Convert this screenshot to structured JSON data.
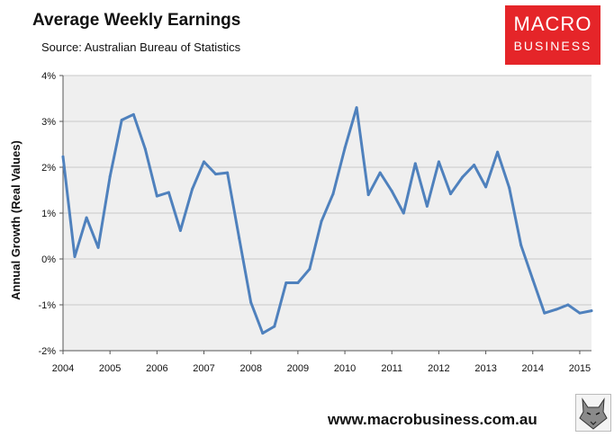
{
  "header": {
    "title": "Average Weekly Earnings",
    "source": "Source: Australian Bureau of Statistics"
  },
  "logo": {
    "line1": "MACRO",
    "line2": "BUSINESS"
  },
  "footer": {
    "url": "www.macrobusiness.com.au"
  },
  "colors": {
    "line": "#4f81bd",
    "plot_bg": "#efefef",
    "logo_bg": "#e52529"
  },
  "icons": {
    "footer_mark": "wolf-icon"
  },
  "chart_data": {
    "type": "line",
    "title": "Average Weekly Earnings",
    "xlabel": "",
    "ylabel": "Annual Growth (Real Values)",
    "xlim": [
      2004,
      2015.25
    ],
    "ylim": [
      -2,
      4
    ],
    "x_ticks": [
      2004,
      2005,
      2006,
      2007,
      2008,
      2009,
      2010,
      2011,
      2012,
      2013,
      2014,
      2015
    ],
    "x_tick_labels": [
      "2004",
      "2005",
      "2006",
      "2007",
      "2008",
      "2009",
      "2010",
      "2011",
      "2012",
      "2013",
      "2014",
      "2015"
    ],
    "y_ticks": [
      -2,
      -1,
      0,
      1,
      2,
      3,
      4
    ],
    "y_tick_labels": [
      "-2%",
      "-1%",
      "0%",
      "1%",
      "2%",
      "3%",
      "4%"
    ],
    "grid": "horizontal",
    "legend": "none",
    "series": [
      {
        "values": [
          [
            2004.0,
            2.23
          ],
          [
            2004.25,
            0.05
          ],
          [
            2004.5,
            0.9
          ],
          [
            2004.75,
            0.25
          ],
          [
            2005.0,
            1.8
          ],
          [
            2005.25,
            3.03
          ],
          [
            2005.5,
            3.15
          ],
          [
            2005.75,
            2.4
          ],
          [
            2006.0,
            1.37
          ],
          [
            2006.25,
            1.45
          ],
          [
            2006.5,
            0.62
          ],
          [
            2006.75,
            1.52
          ],
          [
            2007.0,
            2.12
          ],
          [
            2007.25,
            1.85
          ],
          [
            2007.5,
            1.88
          ],
          [
            2007.75,
            0.45
          ],
          [
            2008.0,
            -0.95
          ],
          [
            2008.25,
            -1.62
          ],
          [
            2008.5,
            -1.47
          ],
          [
            2008.75,
            -0.52
          ],
          [
            2009.0,
            -0.52
          ],
          [
            2009.25,
            -0.22
          ],
          [
            2009.5,
            0.82
          ],
          [
            2009.75,
            1.42
          ],
          [
            2010.0,
            2.42
          ],
          [
            2010.25,
            3.3
          ],
          [
            2010.5,
            1.4
          ],
          [
            2010.75,
            1.88
          ],
          [
            2011.0,
            1.48
          ],
          [
            2011.25,
            1.0
          ],
          [
            2011.5,
            2.08
          ],
          [
            2011.75,
            1.15
          ],
          [
            2012.0,
            2.12
          ],
          [
            2012.25,
            1.42
          ],
          [
            2012.5,
            1.78
          ],
          [
            2012.75,
            2.05
          ],
          [
            2013.0,
            1.57
          ],
          [
            2013.25,
            2.33
          ],
          [
            2013.5,
            1.55
          ],
          [
            2013.75,
            0.3
          ],
          [
            2014.0,
            -0.45
          ],
          [
            2014.25,
            -1.18
          ],
          [
            2014.5,
            -1.1
          ],
          [
            2014.75,
            -1.0
          ],
          [
            2015.0,
            -1.18
          ],
          [
            2015.25,
            -1.13
          ]
        ]
      }
    ]
  }
}
